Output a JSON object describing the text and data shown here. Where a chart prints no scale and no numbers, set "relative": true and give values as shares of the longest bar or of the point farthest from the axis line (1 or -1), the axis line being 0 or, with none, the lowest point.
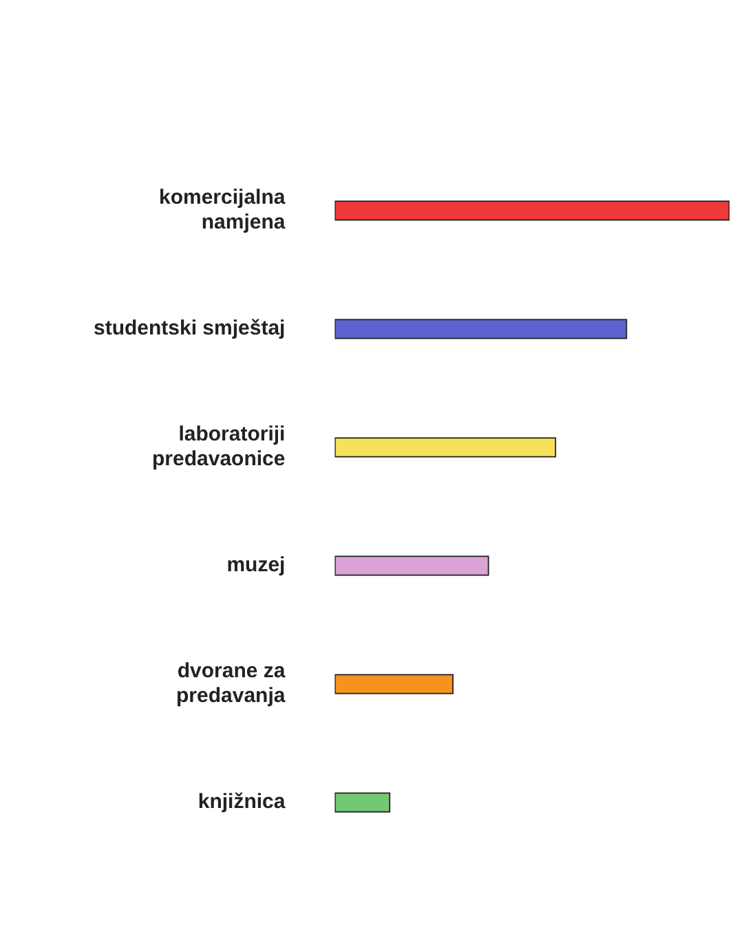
{
  "chart_data": {
    "type": "bar",
    "orientation": "horizontal",
    "relative": true,
    "legend": false,
    "categories": [
      "komercijalna namjena",
      "studentski smještaj",
      "laboratoriji predavaonice",
      "muzej",
      "dvorane za predavanja",
      "knjižnica"
    ],
    "values": [
      1,
      0.74,
      0.56,
      0.39,
      0.3,
      0.14
    ],
    "colors": [
      "#f03a3a",
      "#5e62d0",
      "#f6e25a",
      "#d9a3d6",
      "#f7921e",
      "#74c874"
    ]
  }
}
